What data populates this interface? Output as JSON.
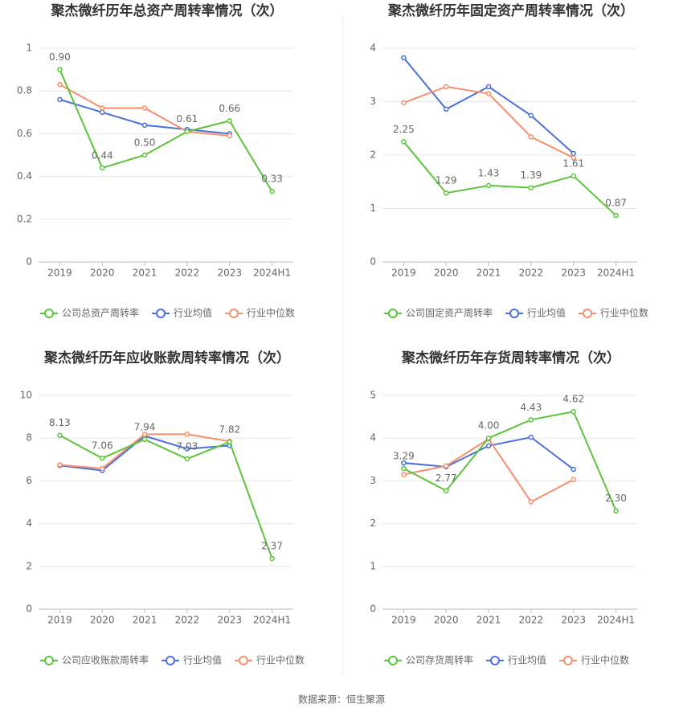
{
  "chart_data": [
    {
      "type": "line",
      "title": "聚杰微纤历年总资产周转率情况（次）",
      "categories": [
        "2019",
        "2020",
        "2021",
        "2022",
        "2023",
        "2024H1"
      ],
      "series": [
        {
          "name": "公司总资产周转率",
          "color": "#5cc43a",
          "values": [
            0.9,
            0.44,
            0.5,
            0.61,
            0.66,
            0.33
          ],
          "value_labels": [
            "0.90",
            "0.44",
            "0.50",
            "0.61",
            "0.66",
            "0.33"
          ]
        },
        {
          "name": "行业均值",
          "color": "#4a70dc",
          "values": [
            0.76,
            0.7,
            0.64,
            0.62,
            0.6,
            null
          ]
        },
        {
          "name": "行业中位数",
          "color": "#f4906c",
          "values": [
            0.83,
            0.72,
            0.72,
            0.61,
            0.59,
            null
          ]
        }
      ],
      "ylim": [
        0,
        1
      ],
      "yticks": [
        0,
        0.2,
        0.4,
        0.6,
        0.8,
        1
      ],
      "grid": true
    },
    {
      "type": "line",
      "title": "聚杰微纤历年固定资产周转率情况（次）",
      "categories": [
        "2019",
        "2020",
        "2021",
        "2022",
        "2023",
        "2024H1"
      ],
      "series": [
        {
          "name": "公司固定资产周转率",
          "color": "#5cc43a",
          "values": [
            2.25,
            1.29,
            1.43,
            1.39,
            1.61,
            0.87
          ],
          "value_labels": [
            "2.25",
            "1.29",
            "1.43",
            "1.39",
            "1.61",
            "0.87"
          ]
        },
        {
          "name": "行业均值",
          "color": "#4a70dc",
          "values": [
            3.82,
            2.86,
            3.28,
            2.74,
            2.03,
            null
          ]
        },
        {
          "name": "行业中位数",
          "color": "#f4906c",
          "values": [
            2.98,
            3.28,
            3.15,
            2.34,
            1.95,
            null
          ]
        }
      ],
      "ylim": [
        0,
        4
      ],
      "yticks": [
        0,
        1,
        2,
        3,
        4
      ],
      "grid": true
    },
    {
      "type": "line",
      "title": "聚杰微纤历年应收账款周转率情况（次）",
      "categories": [
        "2019",
        "2020",
        "2021",
        "2022",
        "2023",
        "2024H1"
      ],
      "series": [
        {
          "name": "公司应收账款周转率",
          "color": "#5cc43a",
          "values": [
            8.13,
            7.06,
            7.94,
            7.03,
            7.82,
            2.37
          ],
          "value_labels": [
            "8.13",
            "7.06",
            "7.94",
            "7.03",
            "7.82",
            "2.37"
          ]
        },
        {
          "name": "行业均值",
          "color": "#4a70dc",
          "values": [
            6.72,
            6.48,
            8.1,
            7.5,
            7.65,
            null
          ]
        },
        {
          "name": "行业中位数",
          "color": "#f4906c",
          "values": [
            6.75,
            6.58,
            8.18,
            8.18,
            7.85,
            null
          ]
        }
      ],
      "ylim": [
        0,
        10
      ],
      "yticks": [
        0,
        2,
        4,
        6,
        8,
        10
      ],
      "grid": true
    },
    {
      "type": "line",
      "title": "聚杰微纤历年存货周转率情况（次）",
      "categories": [
        "2019",
        "2020",
        "2021",
        "2022",
        "2023",
        "2024H1"
      ],
      "series": [
        {
          "name": "公司存货周转率",
          "color": "#5cc43a",
          "values": [
            3.29,
            2.77,
            4.0,
            4.43,
            4.62,
            2.3
          ],
          "value_labels": [
            "3.29",
            "2.77",
            "4.00",
            "4.43",
            "4.62",
            "2.30"
          ]
        },
        {
          "name": "行业均值",
          "color": "#4a70dc",
          "values": [
            3.42,
            3.33,
            3.82,
            4.02,
            3.27,
            null
          ]
        },
        {
          "name": "行业中位数",
          "color": "#f4906c",
          "values": [
            3.15,
            3.35,
            3.98,
            2.51,
            3.03,
            null
          ]
        }
      ],
      "ylim": [
        0,
        5
      ],
      "yticks": [
        0,
        1,
        2,
        3,
        4,
        5
      ],
      "grid": true
    }
  ],
  "source": "数据来源：恒生聚源"
}
